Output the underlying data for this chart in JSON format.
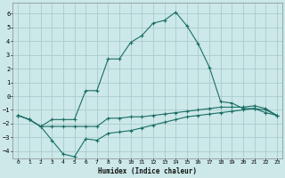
{
  "xlabel": "Humidex (Indice chaleur)",
  "background_color": "#cce8e8",
  "grid_color": "#aacccc",
  "line_color": "#1a6e65",
  "xlim": [
    -0.5,
    23.5
  ],
  "ylim": [
    -4.5,
    6.8
  ],
  "xticks": [
    0,
    1,
    2,
    3,
    4,
    5,
    6,
    7,
    8,
    9,
    10,
    11,
    12,
    13,
    14,
    15,
    16,
    17,
    18,
    19,
    20,
    21,
    22,
    23
  ],
  "yticks": [
    -4,
    -3,
    -2,
    -1,
    0,
    1,
    2,
    3,
    4,
    5,
    6
  ],
  "curve_top_x": [
    0,
    1,
    2,
    3,
    4,
    5,
    6,
    7,
    8,
    9,
    10,
    11,
    12,
    13,
    14,
    15,
    16,
    17,
    18,
    19,
    20,
    21,
    22,
    23
  ],
  "curve_top_y": [
    -1.4,
    -1.7,
    -2.2,
    -1.7,
    -1.7,
    -1.7,
    0.4,
    0.4,
    2.7,
    2.7,
    3.9,
    4.4,
    5.3,
    5.5,
    6.1,
    5.1,
    3.8,
    2.1,
    -0.4,
    -0.5,
    -0.9,
    -0.9,
    -1.2,
    -1.4
  ],
  "curve_mid_x": [
    0,
    1,
    2,
    3,
    4,
    5,
    6,
    7,
    8,
    9,
    10,
    11,
    12,
    13,
    14,
    15,
    16,
    17,
    18,
    19,
    20,
    21,
    22,
    23
  ],
  "curve_mid_y": [
    -1.4,
    -1.7,
    -2.2,
    -2.2,
    -2.2,
    -2.2,
    -2.2,
    -2.2,
    -1.6,
    -1.6,
    -1.5,
    -1.5,
    -1.4,
    -1.3,
    -1.2,
    -1.1,
    -1.0,
    -0.9,
    -0.8,
    -0.8,
    -0.8,
    -0.7,
    -0.9,
    -1.4
  ],
  "curve_bot_x": [
    0,
    1,
    2,
    3,
    4,
    5,
    6,
    7,
    8,
    9,
    10,
    11,
    12,
    13,
    14,
    15,
    16,
    17,
    18,
    19,
    20,
    21,
    22,
    23
  ],
  "curve_bot_y": [
    -1.4,
    -1.7,
    -2.2,
    -3.2,
    -4.2,
    -4.4,
    -3.1,
    -3.2,
    -2.7,
    -2.6,
    -2.5,
    -2.3,
    -2.1,
    -1.9,
    -1.7,
    -1.5,
    -1.4,
    -1.3,
    -1.2,
    -1.1,
    -1.0,
    -0.9,
    -1.0,
    -1.4
  ]
}
